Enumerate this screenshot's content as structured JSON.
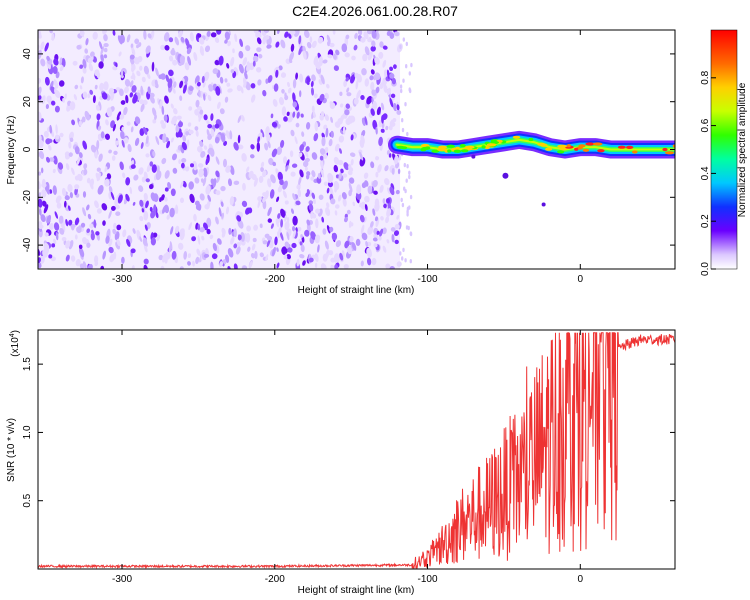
{
  "title": "C2E4.2026.061.00.28.R07",
  "chart_data": [
    {
      "type": "heatmap",
      "name": "spectrogram",
      "xlabel": "Height of straight line (km)",
      "ylabel": "Frequency (Hz)",
      "xlim": [
        -355,
        62
      ],
      "ylim": [
        -50,
        50
      ],
      "xticks": [
        -300,
        -200,
        -100,
        0
      ],
      "yticks": [
        -40,
        -20,
        0,
        20,
        40
      ],
      "noise_region_x": [
        -355,
        -118
      ],
      "signal_region_x": [
        -125,
        62
      ],
      "signal_center_track": [
        {
          "x": -120,
          "y": 2
        },
        {
          "x": -110,
          "y": 1
        },
        {
          "x": -100,
          "y": 1
        },
        {
          "x": -90,
          "y": 0
        },
        {
          "x": -80,
          "y": 0
        },
        {
          "x": -70,
          "y": 1
        },
        {
          "x": -60,
          "y": 2
        },
        {
          "x": -50,
          "y": 3
        },
        {
          "x": -40,
          "y": 4
        },
        {
          "x": -30,
          "y": 3
        },
        {
          "x": -20,
          "y": 1
        },
        {
          "x": -10,
          "y": 0
        },
        {
          "x": 0,
          "y": 1
        },
        {
          "x": 10,
          "y": 1
        },
        {
          "x": 20,
          "y": 0
        },
        {
          "x": 40,
          "y": 0
        },
        {
          "x": 62,
          "y": 0
        }
      ],
      "colorbar": {
        "label": "Normalized spectral amplitude",
        "range": [
          0,
          1
        ],
        "ticks": [
          "0.0",
          "0.2",
          "0.4",
          "0.6",
          "0.8"
        ]
      }
    },
    {
      "type": "line",
      "name": "snr",
      "xlabel": "Height of straight line (km)",
      "ylabel": "SNR (10 * v/v)",
      "y_multiplier": "(x10",
      "y_multiplier_exp": "4",
      "xlim": [
        -355,
        62
      ],
      "ylim": [
        0,
        1.75
      ],
      "xticks": [
        -300,
        -200,
        -100,
        0
      ],
      "yticks": [
        "0.5",
        "1.0",
        "1.5"
      ],
      "series_color": "#ee3333",
      "series": [
        {
          "x": -355,
          "y": 0.02
        },
        {
          "x": -200,
          "y": 0.02
        },
        {
          "x": -110,
          "y": 0.03
        },
        {
          "x": -100,
          "y": 0.08
        },
        {
          "x": -90,
          "y": 0.18
        },
        {
          "x": -80,
          "y": 0.3
        },
        {
          "x": -70,
          "y": 0.38
        },
        {
          "x": -60,
          "y": 0.45
        },
        {
          "x": -50,
          "y": 0.55
        },
        {
          "x": -40,
          "y": 0.65
        },
        {
          "x": -30,
          "y": 0.78
        },
        {
          "x": -20,
          "y": 0.95
        },
        {
          "x": -10,
          "y": 1.1
        },
        {
          "x": 0,
          "y": 1.25
        },
        {
          "x": 10,
          "y": 1.45
        },
        {
          "x": 20,
          "y": 1.58
        },
        {
          "x": 30,
          "y": 1.64
        },
        {
          "x": 40,
          "y": 1.68
        },
        {
          "x": 62,
          "y": 1.68
        }
      ]
    }
  ]
}
